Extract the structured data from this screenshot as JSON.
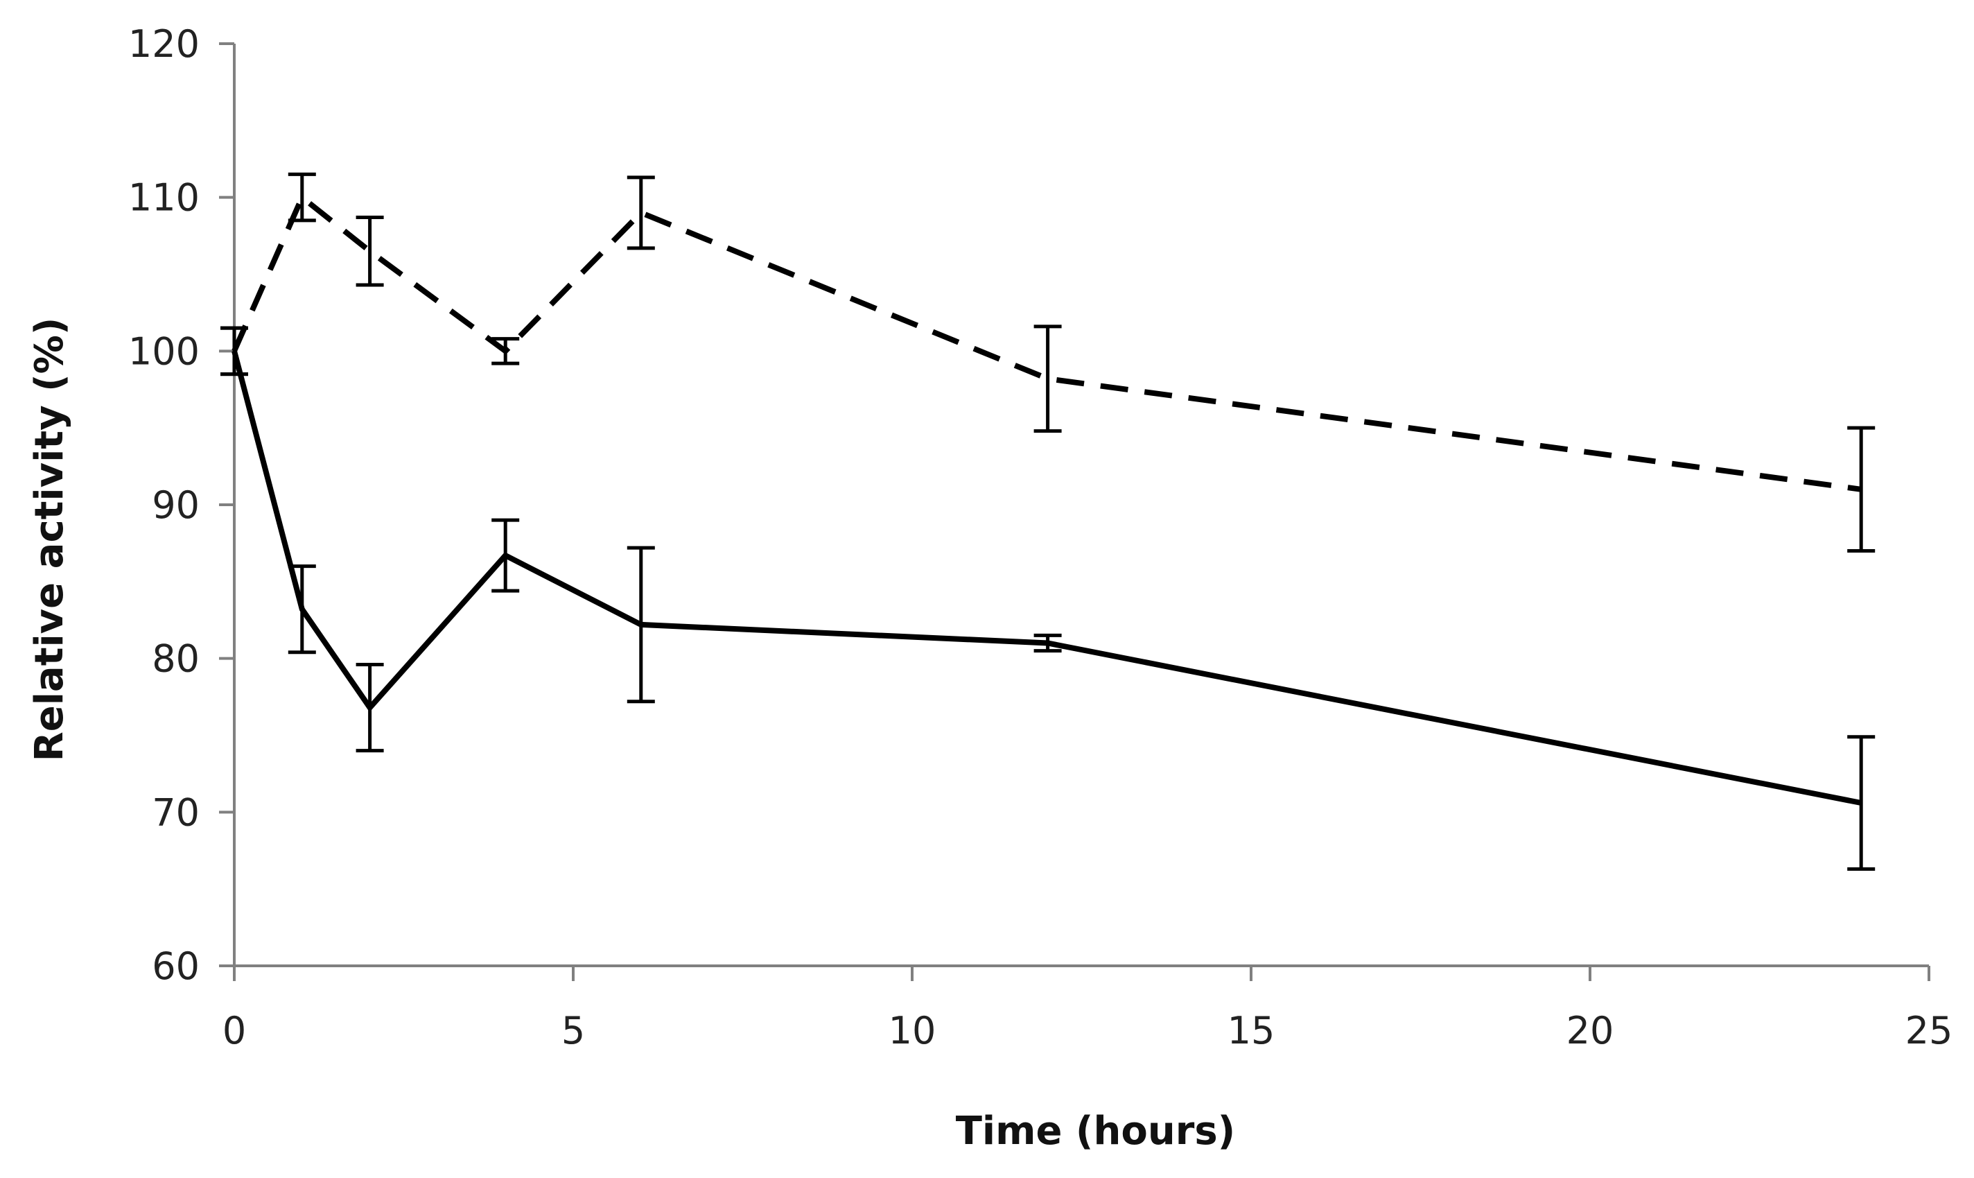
{
  "chart_data": {
    "type": "line",
    "title": "",
    "xlabel": "Time (hours)",
    "ylabel": "Relative activity  (%)",
    "xlim": [
      0,
      25
    ],
    "ylim": [
      60,
      120
    ],
    "xticks": [
      0,
      5,
      10,
      15,
      20,
      25
    ],
    "yticks": [
      60,
      70,
      80,
      90,
      100,
      110,
      120
    ],
    "grid": false,
    "legend": "none",
    "series": [
      {
        "name": "dashed",
        "line_style": "dashed",
        "color": "#000000",
        "x": [
          0,
          1,
          2,
          4,
          6,
          12,
          24
        ],
        "y": [
          100,
          110,
          106.5,
          100,
          109,
          98.2,
          91
        ],
        "error": [
          1.5,
          1.5,
          2.2,
          0.8,
          2.3,
          3.4,
          4
        ]
      },
      {
        "name": "solid",
        "line_style": "solid",
        "color": "#000000",
        "x": [
          0,
          1,
          2,
          4,
          6,
          12,
          24
        ],
        "y": [
          100,
          83.2,
          76.8,
          86.7,
          82.2,
          81,
          70.6
        ],
        "error": [
          1.5,
          2.8,
          2.8,
          2.3,
          5,
          0.5,
          4.3
        ]
      }
    ]
  }
}
